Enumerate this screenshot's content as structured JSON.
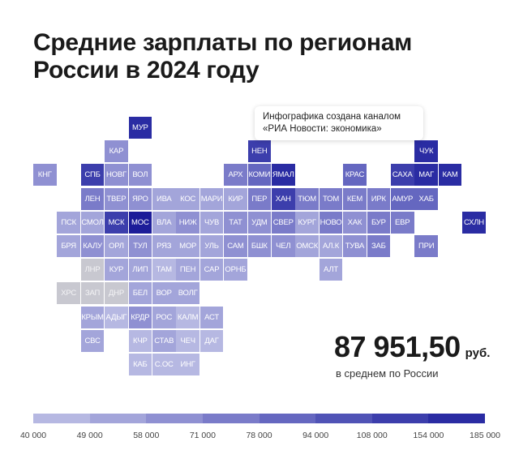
{
  "title": "Средние зарплаты по регионам России в 2024 году",
  "note": {
    "line1": "Инфографика создана каналом",
    "line2": "«РИА Новости: экономика»"
  },
  "summary": {
    "value": "87 951,50",
    "unit": "руб.",
    "caption": "в среднем по России"
  },
  "colors": {
    "tiers": [
      "#c8c8d0",
      "#b6b8e2",
      "#a3a5da",
      "#8f90d2",
      "#7a7bc9",
      "#6567c0",
      "#5053b6",
      "#3c3eac",
      "#2a2ca3",
      "#1c1c99"
    ],
    "light_text": "#ffffff",
    "dark_text": "#2a2a40"
  },
  "chart_data": {
    "type": "heatmap",
    "title": "Средние зарплаты по регионам России в 2024 году",
    "legend": {
      "tick_labels": [
        "40 000",
        "49 000",
        "58 000",
        "71 000",
        "78 000",
        "94 000",
        "108 000",
        "154 000",
        "185 000"
      ]
    },
    "cells": [
      {
        "label": "МУР",
        "row": 0,
        "col": 4,
        "tier": 8
      },
      {
        "label": "КАР",
        "row": 1,
        "col": 3,
        "tier": 3
      },
      {
        "label": "НЕН",
        "row": 1,
        "col": 9,
        "tier": 7
      },
      {
        "label": "ЧУК",
        "row": 1,
        "col": 16,
        "tier": 8
      },
      {
        "label": "КНГ",
        "row": 2,
        "col": 0,
        "tier": 3
      },
      {
        "label": "СПБ",
        "row": 2,
        "col": 2,
        "tier": 7
      },
      {
        "label": "НОВГ",
        "row": 2,
        "col": 3,
        "tier": 3
      },
      {
        "label": "ВОЛ",
        "row": 2,
        "col": 4,
        "tier": 3
      },
      {
        "label": "АРХ",
        "row": 2,
        "col": 8,
        "tier": 4
      },
      {
        "label": "КОМИ",
        "row": 2,
        "col": 9,
        "tier": 5
      },
      {
        "label": "ЯМАЛ",
        "row": 2,
        "col": 10,
        "tier": 8
      },
      {
        "label": "КРАС",
        "row": 2,
        "col": 13,
        "tier": 5
      },
      {
        "label": "САХА",
        "row": 2,
        "col": 15,
        "tier": 7
      },
      {
        "label": "МАГ",
        "row": 2,
        "col": 16,
        "tier": 8
      },
      {
        "label": "КАМ",
        "row": 2,
        "col": 17,
        "tier": 8
      },
      {
        "label": "ЛЕН",
        "row": 3,
        "col": 2,
        "tier": 4
      },
      {
        "label": "ТВЕР",
        "row": 3,
        "col": 3,
        "tier": 3
      },
      {
        "label": "ЯРО",
        "row": 3,
        "col": 4,
        "tier": 3
      },
      {
        "label": "ИВА",
        "row": 3,
        "col": 5,
        "tier": 2
      },
      {
        "label": "КОС",
        "row": 3,
        "col": 6,
        "tier": 2
      },
      {
        "label": "МАРИ",
        "row": 3,
        "col": 7,
        "tier": 2
      },
      {
        "label": "КИР",
        "row": 3,
        "col": 8,
        "tier": 2
      },
      {
        "label": "ПЕР",
        "row": 3,
        "col": 9,
        "tier": 4
      },
      {
        "label": "ХАН",
        "row": 3,
        "col": 10,
        "tier": 7
      },
      {
        "label": "ТЮМ",
        "row": 3,
        "col": 11,
        "tier": 4
      },
      {
        "label": "ТОМ",
        "row": 3,
        "col": 12,
        "tier": 4
      },
      {
        "label": "КЕМ",
        "row": 3,
        "col": 13,
        "tier": 4
      },
      {
        "label": "ИРК",
        "row": 3,
        "col": 14,
        "tier": 4
      },
      {
        "label": "АМУР",
        "row": 3,
        "col": 15,
        "tier": 5
      },
      {
        "label": "ХАБ",
        "row": 3,
        "col": 16,
        "tier": 5
      },
      {
        "label": "ПСК",
        "row": 4,
        "col": 1,
        "tier": 2
      },
      {
        "label": "СМОЛ",
        "row": 4,
        "col": 2,
        "tier": 2
      },
      {
        "label": "МСК",
        "row": 4,
        "col": 3,
        "tier": 7
      },
      {
        "label": "МОС",
        "row": 4,
        "col": 4,
        "tier": 9
      },
      {
        "label": "ВЛА",
        "row": 4,
        "col": 5,
        "tier": 2
      },
      {
        "label": "НИЖ",
        "row": 4,
        "col": 6,
        "tier": 3
      },
      {
        "label": "ЧУВ",
        "row": 4,
        "col": 7,
        "tier": 2
      },
      {
        "label": "ТАТ",
        "row": 4,
        "col": 8,
        "tier": 3
      },
      {
        "label": "УДМ",
        "row": 4,
        "col": 9,
        "tier": 3
      },
      {
        "label": "СВЕР",
        "row": 4,
        "col": 10,
        "tier": 4
      },
      {
        "label": "КУРГ",
        "row": 4,
        "col": 11,
        "tier": 2
      },
      {
        "label": "НОВО",
        "row": 4,
        "col": 12,
        "tier": 4
      },
      {
        "label": "ХАК",
        "row": 4,
        "col": 13,
        "tier": 3
      },
      {
        "label": "БУР",
        "row": 4,
        "col": 14,
        "tier": 4
      },
      {
        "label": "ЕВР",
        "row": 4,
        "col": 15,
        "tier": 4
      },
      {
        "label": "СХЛН",
        "row": 4,
        "col": 18,
        "tier": 8
      },
      {
        "label": "БРЯ",
        "row": 5,
        "col": 1,
        "tier": 2
      },
      {
        "label": "КАЛУ",
        "row": 5,
        "col": 2,
        "tier": 3
      },
      {
        "label": "ОРЛ",
        "row": 5,
        "col": 3,
        "tier": 2
      },
      {
        "label": "ТУЛ",
        "row": 5,
        "col": 4,
        "tier": 3
      },
      {
        "label": "РЯЗ",
        "row": 5,
        "col": 5,
        "tier": 2
      },
      {
        "label": "МОР",
        "row": 5,
        "col": 6,
        "tier": 2
      },
      {
        "label": "УЛЬ",
        "row": 5,
        "col": 7,
        "tier": 2
      },
      {
        "label": "САМ",
        "row": 5,
        "col": 8,
        "tier": 3
      },
      {
        "label": "БШК",
        "row": 5,
        "col": 9,
        "tier": 3
      },
      {
        "label": "ЧЕЛ",
        "row": 5,
        "col": 10,
        "tier": 3
      },
      {
        "label": "ОМСК",
        "row": 5,
        "col": 11,
        "tier": 2
      },
      {
        "label": "АЛ.К",
        "row": 5,
        "col": 12,
        "tier": 2
      },
      {
        "label": "ТУВА",
        "row": 5,
        "col": 13,
        "tier": 3
      },
      {
        "label": "ЗАБ",
        "row": 5,
        "col": 14,
        "tier": 4
      },
      {
        "label": "ПРИ",
        "row": 5,
        "col": 16,
        "tier": 4
      },
      {
        "label": "ЛНР",
        "row": 6,
        "col": 2,
        "tier": 0
      },
      {
        "label": "КУР",
        "row": 6,
        "col": 3,
        "tier": 2
      },
      {
        "label": "ЛИП",
        "row": 6,
        "col": 4,
        "tier": 2
      },
      {
        "label": "ТАМ",
        "row": 6,
        "col": 5,
        "tier": 1
      },
      {
        "label": "ПЕН",
        "row": 6,
        "col": 6,
        "tier": 2
      },
      {
        "label": "САР",
        "row": 6,
        "col": 7,
        "tier": 2
      },
      {
        "label": "ОРНБ",
        "row": 6,
        "col": 8,
        "tier": 2
      },
      {
        "label": "АЛТ",
        "row": 6,
        "col": 12,
        "tier": 2
      },
      {
        "label": "ХРС",
        "row": 7,
        "col": 1,
        "tier": 0
      },
      {
        "label": "ЗАП",
        "row": 7,
        "col": 2,
        "tier": 0
      },
      {
        "label": "ДНР",
        "row": 7,
        "col": 3,
        "tier": 0
      },
      {
        "label": "БЕЛ",
        "row": 7,
        "col": 4,
        "tier": 2
      },
      {
        "label": "ВОР",
        "row": 7,
        "col": 5,
        "tier": 2
      },
      {
        "label": "ВОЛГ",
        "row": 7,
        "col": 6,
        "tier": 2
      },
      {
        "label": "КРЫМ",
        "row": 8,
        "col": 2,
        "tier": 2
      },
      {
        "label": "АДЫГ",
        "row": 8,
        "col": 3,
        "tier": 1
      },
      {
        "label": "КРДР",
        "row": 8,
        "col": 4,
        "tier": 3
      },
      {
        "label": "РОС",
        "row": 8,
        "col": 5,
        "tier": 2
      },
      {
        "label": "КАЛМ",
        "row": 8,
        "col": 6,
        "tier": 1
      },
      {
        "label": "АСТ",
        "row": 8,
        "col": 7,
        "tier": 2
      },
      {
        "label": "СВС",
        "row": 9,
        "col": 2,
        "tier": 2
      },
      {
        "label": "КЧР",
        "row": 9,
        "col": 4,
        "tier": 1
      },
      {
        "label": "СТАВ",
        "row": 9,
        "col": 5,
        "tier": 2
      },
      {
        "label": "ЧЕЧ",
        "row": 9,
        "col": 6,
        "tier": 1
      },
      {
        "label": "ДАГ",
        "row": 9,
        "col": 7,
        "tier": 1
      },
      {
        "label": "КАБ",
        "row": 10,
        "col": 4,
        "tier": 1
      },
      {
        "label": "С.ОС",
        "row": 10,
        "col": 5,
        "tier": 1
      },
      {
        "label": "ИНГ",
        "row": 10,
        "col": 6,
        "tier": 1
      }
    ]
  }
}
